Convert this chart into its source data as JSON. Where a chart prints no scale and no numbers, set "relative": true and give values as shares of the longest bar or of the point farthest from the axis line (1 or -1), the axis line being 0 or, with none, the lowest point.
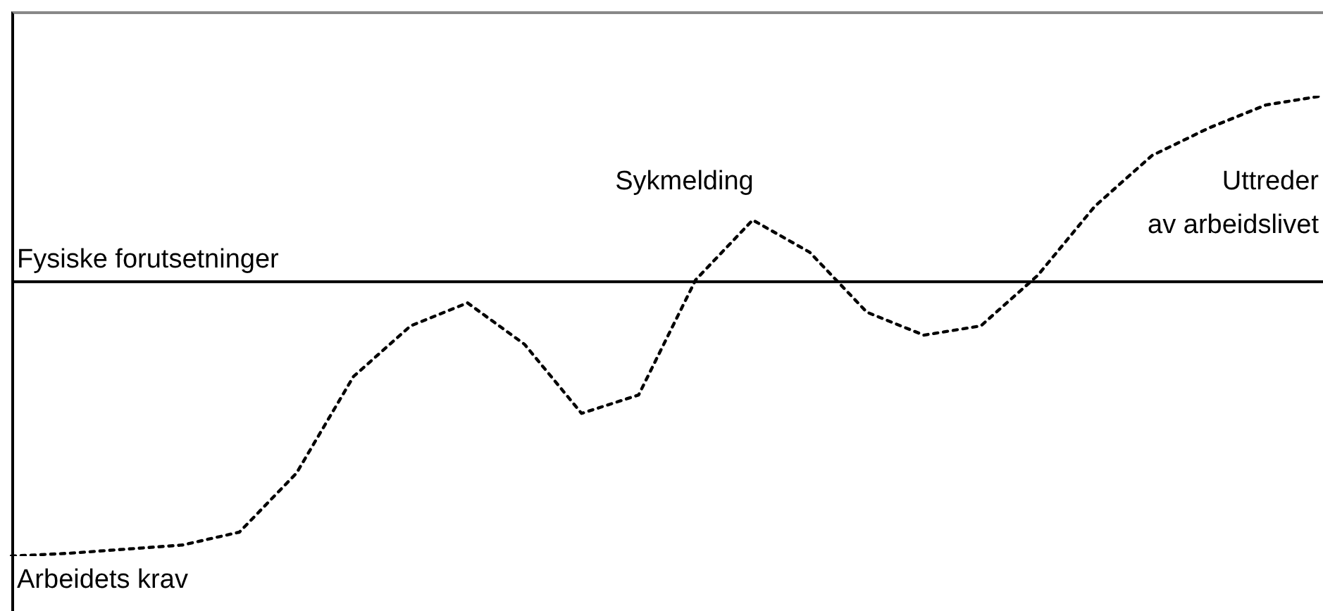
{
  "chart_data": {
    "type": "line",
    "relative": true,
    "legend": false,
    "marker": "none",
    "line_style": "dotted",
    "categories": [
      null,
      null,
      null,
      null,
      null,
      null,
      null,
      null,
      null,
      null,
      null,
      null,
      null,
      null,
      null,
      null,
      null,
      null,
      null,
      null,
      null,
      null,
      null,
      null
    ],
    "series": [
      {
        "name": "Arbeidets krav",
        "color": "#000000",
        "values": [
          0,
          0.006,
          0.015,
          0.024,
          0.052,
          0.18,
          0.39,
          0.5,
          0.55,
          0.46,
          0.31,
          0.35,
          0.6,
          0.73,
          0.66,
          0.53,
          0.48,
          0.5,
          0.61,
          0.76,
          0.87,
          0.93,
          0.98,
          1
        ]
      }
    ],
    "ref_lines": [
      {
        "axis": "y",
        "value": 0.596,
        "label": "Fysiske forutsetninger",
        "color": "#000000",
        "line_style": "solid"
      }
    ],
    "annotations": [
      "Sykmelding",
      "Uttreder\nav arbeidslivet"
    ]
  }
}
